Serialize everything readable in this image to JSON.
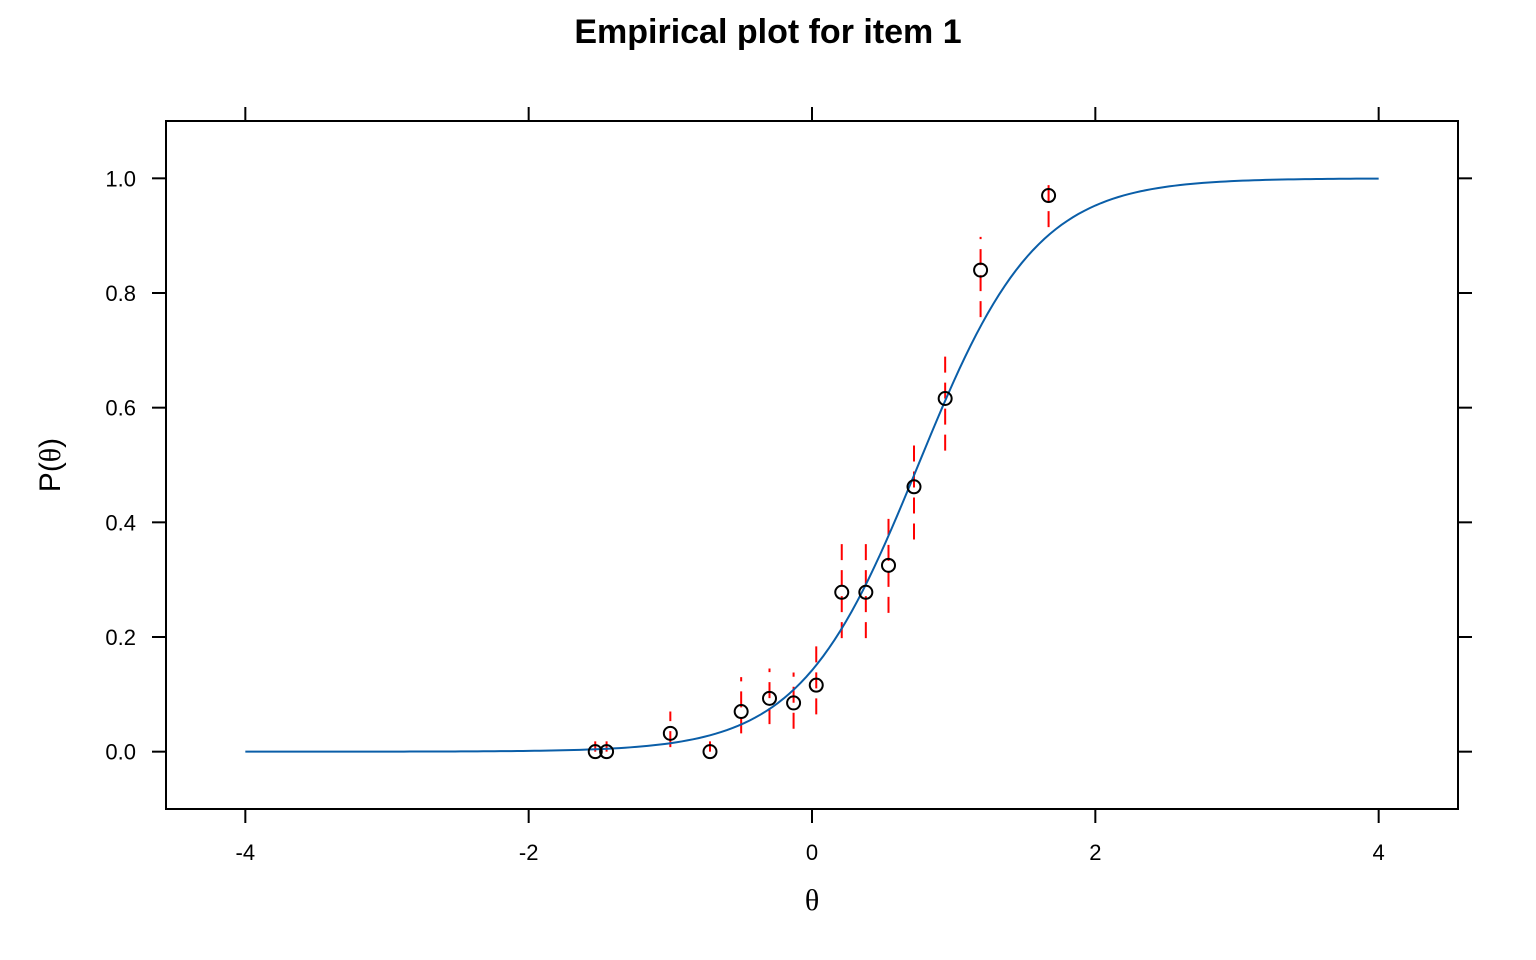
{
  "chart_data": {
    "type": "scatter",
    "title": "Empirical plot for item 1",
    "xlabel": "θ",
    "ylabel_prefix": "P(",
    "ylabel_symbol": "θ",
    "ylabel_suffix": ")",
    "xlim": [
      -4.56,
      4.56
    ],
    "ylim": [
      -0.1,
      1.1
    ],
    "x_ticks": [
      -4,
      -2,
      0,
      2,
      4
    ],
    "x_tick_labels": [
      "-4",
      "-2",
      "0",
      "2",
      "4"
    ],
    "y_ticks": [
      0.0,
      0.2,
      0.4,
      0.6,
      0.8,
      1.0
    ],
    "y_tick_labels": [
      "0.0",
      "0.2",
      "0.4",
      "0.6",
      "0.8",
      "1.0"
    ],
    "curve": {
      "model": "2PL logistic",
      "a": 2.4,
      "b": 0.75,
      "range": [
        -4,
        4
      ],
      "color": "#0a5ea8"
    },
    "points": {
      "color": "#000000",
      "x": [
        -1.53,
        -1.45,
        -1.0,
        -0.72,
        -0.5,
        -0.3,
        -0.13,
        0.03,
        0.21,
        0.38,
        0.54,
        0.72,
        0.94,
        1.19,
        1.67
      ],
      "y": [
        0.0,
        0.0,
        0.032,
        0.0,
        0.07,
        0.093,
        0.085,
        0.116,
        0.278,
        0.278,
        0.325,
        0.462,
        0.616,
        0.84,
        0.97
      ]
    },
    "error_bars": {
      "color": "#ff0000",
      "style": "dashed",
      "lower": [
        0.0,
        0.0,
        0.008,
        0.0,
        0.032,
        0.048,
        0.04,
        0.065,
        0.198,
        0.198,
        0.242,
        0.37,
        0.525,
        0.758,
        0.915
      ],
      "upper": [
        0.018,
        0.018,
        0.07,
        0.018,
        0.13,
        0.145,
        0.138,
        0.185,
        0.365,
        0.365,
        0.415,
        0.545,
        0.7,
        0.898,
        0.998
      ]
    },
    "grid": false,
    "legend": "none"
  }
}
